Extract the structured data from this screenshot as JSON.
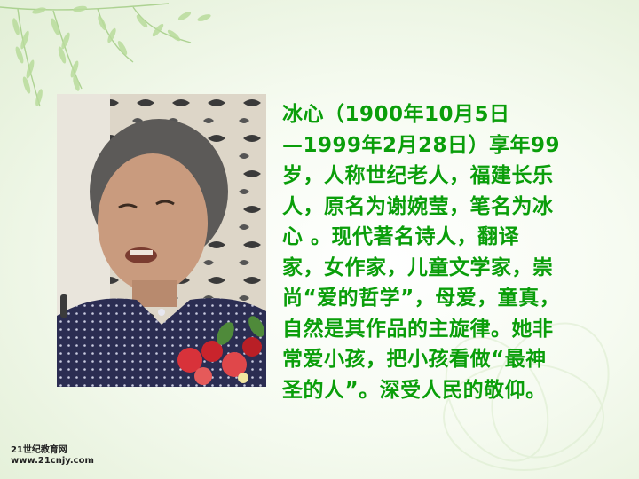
{
  "bio": {
    "lines": [
      "冰心（1900年10月5日",
      "—1999年2月28日）享年99",
      "岁，人称世纪老人，福建长乐",
      "人，原名为谢婉莹，笔名为冰",
      "心 。现代著名诗人，翻译",
      "家，女作家，儿童文学家，崇",
      "尚“爱的哲学”，母爱，童真，",
      "自然是其作品的主旋律。她非",
      "常爱小孩，把小孩看做“最神",
      "圣的人”。深受人民的敬仰。"
    ],
    "color": "#0a9e0a"
  },
  "site_logo": {
    "name": "21世纪教育网",
    "url": "www.21cnjy.com"
  }
}
